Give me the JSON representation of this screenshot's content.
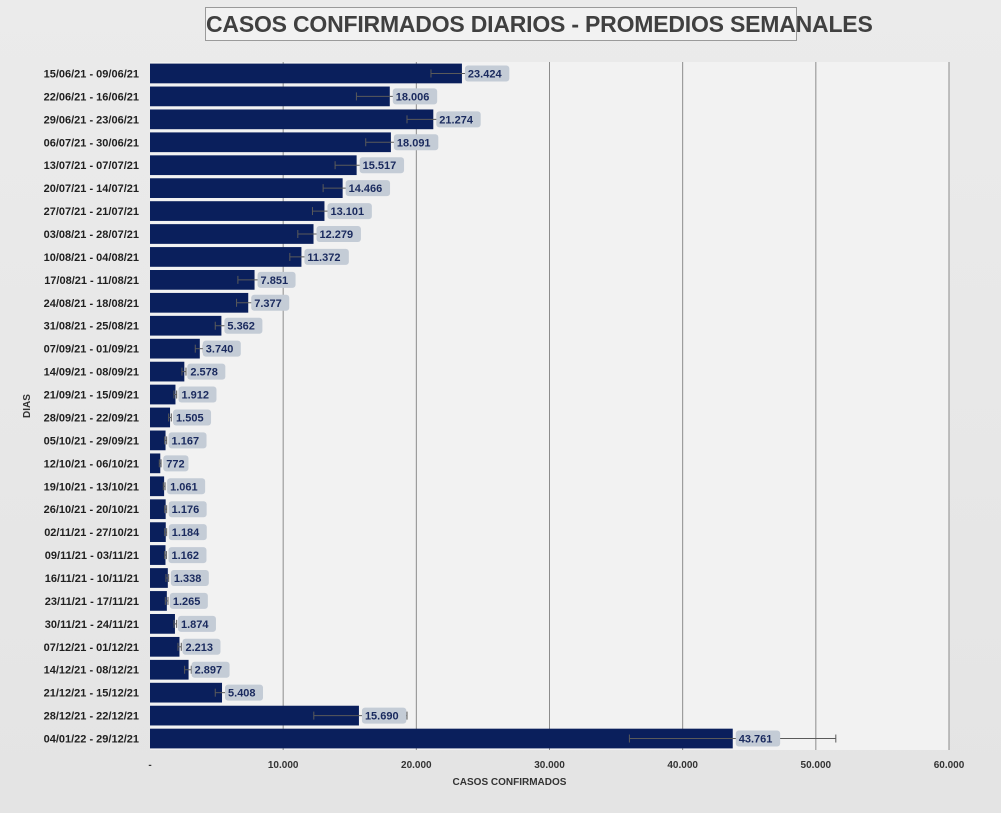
{
  "colors": {
    "bar": "#0a1f5c",
    "label_bg": "#c4ccd6",
    "plot_bg": "#f2f2f2",
    "gridline": "#8c8c8c",
    "error_bar": "#5a5a5a"
  },
  "chart_data": {
    "type": "bar",
    "orientation": "horizontal",
    "title": "CASOS CONFIRMADOS DIARIOS - PROMEDIOS SEMANALES",
    "xlabel": "CASOS CONFIRMADOS",
    "ylabel": "DIAS",
    "xlim": [
      0,
      60000
    ],
    "x_ticks": [
      "-",
      "10.000",
      "20.000",
      "30.000",
      "40.000",
      "50.000",
      "60.000"
    ],
    "grid": "vertical",
    "error_bars": true,
    "categories": [
      "15/06/21 - 09/06/21",
      "22/06/21 - 16/06/21",
      "29/06/21 - 23/06/21",
      "06/07/21 - 30/06/21",
      "13/07/21 - 07/07/21",
      "20/07/21 - 14/07/21",
      "27/07/21 - 21/07/21",
      "03/08/21 - 28/07/21",
      "10/08/21 - 04/08/21",
      "17/08/21 - 11/08/21",
      "24/08/21 - 18/08/21",
      "31/08/21 - 25/08/21",
      "07/09/21 - 01/09/21",
      "14/09/21 - 08/09/21",
      "21/09/21 - 15/09/21",
      "28/09/21 - 22/09/21",
      "05/10/21 - 29/09/21",
      "12/10/21 - 06/10/21",
      "19/10/21 - 13/10/21",
      "26/10/21 - 20/10/21",
      "02/11/21 - 27/10/21",
      "09/11/21 - 03/11/21",
      "16/11/21 - 10/11/21",
      "23/11/21 - 17/11/21",
      "30/11/21 - 24/11/21",
      "07/12/21 - 01/12/21",
      "14/12/21 - 08/12/21",
      "21/12/21 - 15/12/21",
      "28/12/21 - 22/12/21",
      "04/01/22 - 29/12/21"
    ],
    "values": [
      23424,
      18006,
      21274,
      18091,
      15517,
      14466,
      13101,
      12279,
      11372,
      7851,
      7377,
      5362,
      3740,
      2578,
      1912,
      1505,
      1167,
      772,
      1061,
      1176,
      1184,
      1162,
      1338,
      1265,
      1874,
      2213,
      2897,
      5408,
      15690,
      43761
    ],
    "value_labels": [
      "23.424",
      "18.006",
      "21.274",
      "18.091",
      "15.517",
      "14.466",
      "13.101",
      "12.279",
      "11.372",
      "7.851",
      "7.377",
      "5.362",
      "3.740",
      "2.578",
      "1.912",
      "1.505",
      "1.167",
      "772",
      "1.061",
      "1.176",
      "1.184",
      "1.162",
      "1.338",
      "1.265",
      "1.874",
      "2.213",
      "2.897",
      "5.408",
      "15.690",
      "43.761"
    ],
    "error_low": [
      21100,
      15500,
      19300,
      16200,
      13900,
      13000,
      12200,
      11100,
      10500,
      6600,
      6500,
      4900,
      3400,
      2400,
      1800,
      1400,
      1100,
      700,
      1000,
      1100,
      1100,
      1100,
      1200,
      1150,
      1800,
      2100,
      2600,
      4900,
      12300,
      36000
    ],
    "error_high": [
      25300,
      20000,
      23000,
      20100,
      17000,
      15700,
      13800,
      13400,
      12200,
      9000,
      8000,
      5700,
      4000,
      2700,
      2000,
      1600,
      1250,
      830,
      1130,
      1250,
      1250,
      1230,
      1400,
      1350,
      2000,
      2350,
      3100,
      5900,
      19300,
      51500
    ]
  }
}
